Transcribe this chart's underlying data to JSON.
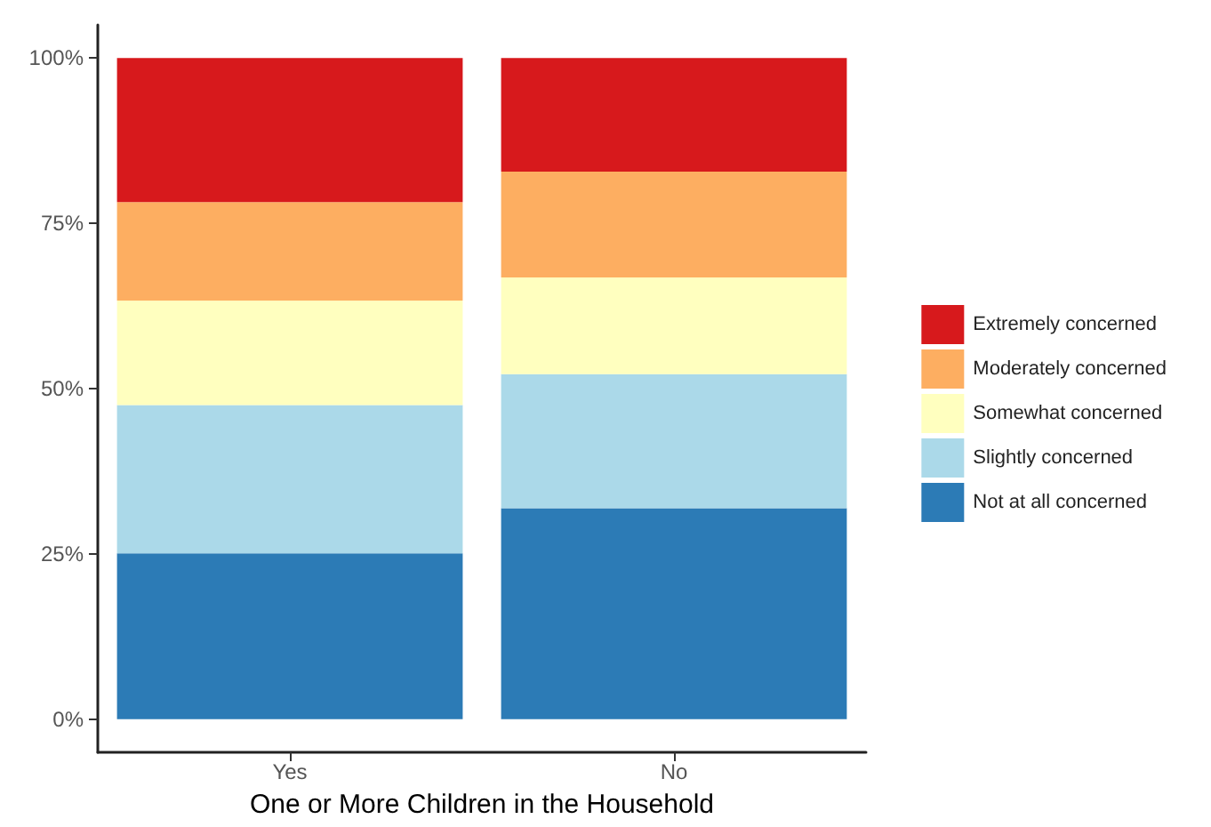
{
  "chart_data": {
    "type": "bar",
    "stacked": true,
    "xlabel": "One or More Children in the Household",
    "categories": [
      "Yes",
      "No"
    ],
    "series": [
      {
        "name": "Not at all concerned",
        "color": "#2c7bb6",
        "values": [
          25.1,
          31.9
        ]
      },
      {
        "name": "Slightly concerned",
        "color": "#abd9e9",
        "values": [
          22.4,
          20.3
        ]
      },
      {
        "name": "Somewhat concerned",
        "color": "#ffffbf",
        "values": [
          15.8,
          14.6
        ]
      },
      {
        "name": "Moderately concerned",
        "color": "#fdae61",
        "values": [
          14.9,
          16.0
        ]
      },
      {
        "name": "Extremely concerned",
        "color": "#d7191c",
        "values": [
          21.8,
          17.2
        ]
      }
    ],
    "ylim": [
      -5,
      105
    ],
    "yticks": [
      {
        "value": 0,
        "label": "0%"
      },
      {
        "value": 25,
        "label": "25%"
      },
      {
        "value": 50,
        "label": "50%"
      },
      {
        "value": 75,
        "label": "75%"
      },
      {
        "value": 100,
        "label": "100%"
      }
    ],
    "grid": false,
    "legend": "right"
  }
}
